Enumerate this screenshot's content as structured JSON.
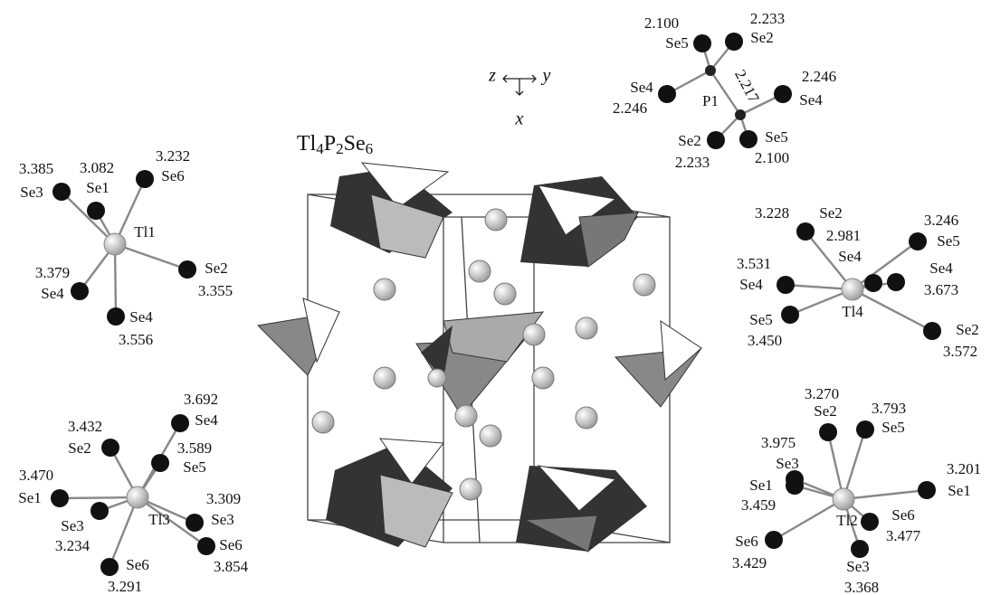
{
  "title_formula": [
    "Tl",
    "4",
    "P",
    "2",
    "Se",
    "6"
  ],
  "axes": {
    "z": "z",
    "y": "y",
    "x": "x"
  },
  "clusters": [
    {
      "center": "P1",
      "bond": "2.217",
      "neighbors": [
        {
          "atom": "Se5",
          "distance": "2.100"
        },
        {
          "atom": "Se2",
          "distance": "2.233"
        },
        {
          "atom": "Se4",
          "distance": "2.246"
        },
        {
          "atom": "Se4",
          "distance": "2.246"
        },
        {
          "atom": "Se2",
          "distance": "2.233"
        },
        {
          "atom": "Se5",
          "distance": "2.100"
        }
      ]
    },
    {
      "center": "Tl1",
      "neighbors": [
        {
          "atom": "Se3",
          "distance": "3.385"
        },
        {
          "atom": "Se1",
          "distance": "3.082"
        },
        {
          "atom": "Se6",
          "distance": "3.232"
        },
        {
          "atom": "Se2",
          "distance": "3.355"
        },
        {
          "atom": "Se4",
          "distance": "3.379"
        },
        {
          "atom": "Se4",
          "distance": "3.556"
        }
      ]
    },
    {
      "center": "Tl4",
      "neighbors": [
        {
          "atom": "Se2",
          "distance": "3.228"
        },
        {
          "atom": "Se5",
          "distance": "3.246"
        },
        {
          "atom": "Se4",
          "distance": "2.981"
        },
        {
          "atom": "Se4",
          "distance": "3.673"
        },
        {
          "atom": "Se4",
          "distance": "3.531"
        },
        {
          "atom": "Se5",
          "distance": "3.450"
        },
        {
          "atom": "Se2",
          "distance": "3.572"
        }
      ]
    },
    {
      "center": "Tl3",
      "neighbors": [
        {
          "atom": "Se4",
          "distance": "3.692"
        },
        {
          "atom": "Se2",
          "distance": "3.432"
        },
        {
          "atom": "Se5",
          "distance": "3.589"
        },
        {
          "atom": "Se1",
          "distance": "3.470"
        },
        {
          "atom": "Se3",
          "distance": "3.309"
        },
        {
          "atom": "Se3",
          "distance": "3.234"
        },
        {
          "atom": "Se6",
          "distance": "3.854"
        },
        {
          "atom": "Se6",
          "distance": "3.291"
        }
      ]
    },
    {
      "center": "Tl2",
      "neighbors": [
        {
          "atom": "Se2",
          "distance": "3.270"
        },
        {
          "atom": "Se5",
          "distance": "3.793"
        },
        {
          "atom": "Se3",
          "distance": "3.975"
        },
        {
          "atom": "Se1",
          "distance": "3.459"
        },
        {
          "atom": "Se1",
          "distance": "3.201"
        },
        {
          "atom": "Se6",
          "distance": "3.477"
        },
        {
          "atom": "Se6",
          "distance": "3.429"
        },
        {
          "atom": "Se3",
          "distance": "3.368"
        }
      ]
    }
  ]
}
